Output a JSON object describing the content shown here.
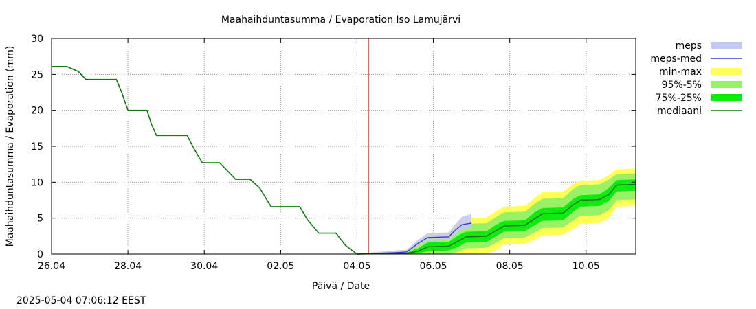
{
  "chart_data": {
    "type": "line",
    "title": "Maahaihduntasumma / Evaporation   Iso Lamujärvi",
    "xlabel": "Päivä / Date",
    "ylabel": "Maahaihduntasumma / Evaporation (mm)",
    "ylim": [
      0,
      30
    ],
    "yticks": [
      "0",
      "5",
      "10",
      "15",
      "20",
      "25",
      "30"
    ],
    "xlim_days": [
      0,
      15.3
    ],
    "xticks": [
      {
        "day": 0,
        "label": "26.04"
      },
      {
        "day": 2,
        "label": "28.04"
      },
      {
        "day": 4,
        "label": "30.04"
      },
      {
        "day": 6,
        "label": "02.05"
      },
      {
        "day": 8,
        "label": "04.05"
      },
      {
        "day": 10,
        "label": "06.05"
      },
      {
        "day": 12,
        "label": "08.05"
      },
      {
        "day": 14,
        "label": "10.05"
      }
    ],
    "grid": true,
    "now_day": 8.3,
    "legend_position": "right",
    "legend": [
      {
        "key": "meps",
        "label": "meps",
        "color": "#c4c8f4",
        "style": "band"
      },
      {
        "key": "meps-med",
        "label": "meps-med",
        "color": "#3a3acc",
        "style": "line"
      },
      {
        "key": "min-max",
        "label": "min-max",
        "color": "#ffff55",
        "style": "band"
      },
      {
        "key": "p95-5",
        "label": "95%-5%",
        "color": "#99f266",
        "style": "band"
      },
      {
        "key": "p75-25",
        "label": "75%-25%",
        "color": "#11ea11",
        "style": "band"
      },
      {
        "key": "mediaani",
        "label": "mediaani",
        "color": "#117711",
        "style": "line"
      }
    ],
    "series": {
      "observed": {
        "name": "mediaani (history)",
        "x": [
          0,
          0.4,
          0.7,
          0.9,
          1.7,
          1.85,
          2.0,
          2.5,
          2.62,
          2.75,
          3.0,
          3.55,
          3.75,
          3.95,
          4.4,
          4.62,
          4.82,
          5.2,
          5.45,
          5.75,
          5.95,
          6.5,
          6.7,
          7.0,
          7.45,
          7.7,
          8.0
        ],
        "y": [
          26.1,
          26.1,
          25.4,
          24.3,
          24.3,
          22.3,
          20.0,
          20.0,
          18.0,
          16.5,
          16.5,
          16.5,
          14.5,
          12.7,
          12.7,
          11.5,
          10.4,
          10.4,
          9.2,
          6.6,
          6.6,
          6.6,
          4.8,
          2.9,
          2.9,
          1.2,
          0.0
        ]
      },
      "forecast_x": [
        8.0,
        9.3,
        9.6,
        9.85,
        10.4,
        10.65,
        10.85,
        11.4,
        11.65,
        11.85,
        12.4,
        12.65,
        12.85,
        13.4,
        13.65,
        13.85,
        14.35,
        14.6,
        14.8,
        15.3
      ],
      "median": [
        0.0,
        0.1,
        0.4,
        1.0,
        1.1,
        1.8,
        2.4,
        2.5,
        3.3,
        3.9,
        4.0,
        4.9,
        5.6,
        5.7,
        6.8,
        7.5,
        7.6,
        8.3,
        9.6,
        9.7
      ],
      "p75": [
        0.0,
        0.2,
        0.8,
        1.6,
        1.7,
        2.6,
        3.1,
        3.2,
        4.1,
        4.6,
        4.7,
        5.8,
        6.4,
        6.5,
        7.6,
        8.2,
        8.3,
        9.2,
        10.3,
        10.4
      ],
      "p25": [
        0.0,
        0.0,
        0.1,
        0.4,
        0.5,
        1.0,
        1.6,
        1.7,
        2.5,
        3.1,
        3.2,
        4.0,
        4.6,
        4.7,
        5.8,
        6.6,
        6.7,
        7.4,
        8.7,
        8.8
      ],
      "p95": [
        0.0,
        0.4,
        1.3,
        2.3,
        2.4,
        3.5,
        4.2,
        4.3,
        5.2,
        5.8,
        5.9,
        7.0,
        7.7,
        7.8,
        9.0,
        9.6,
        9.7,
        10.4,
        11.1,
        11.2
      ],
      "p5": [
        0.0,
        0.0,
        0.0,
        0.0,
        0.0,
        0.3,
        0.8,
        0.9,
        1.6,
        2.2,
        2.3,
        3.0,
        3.6,
        3.7,
        4.6,
        5.3,
        5.4,
        6.1,
        7.5,
        7.6
      ],
      "max": [
        0.0,
        0.6,
        1.7,
        2.8,
        3.0,
        4.4,
        5.0,
        5.1,
        6.0,
        6.6,
        6.7,
        7.8,
        8.6,
        8.7,
        9.7,
        10.2,
        10.3,
        11.0,
        11.8,
        11.9
      ],
      "min": [
        0.0,
        0.0,
        0.0,
        0.0,
        0.0,
        0.0,
        0.0,
        0.1,
        0.6,
        1.3,
        1.4,
        2.0,
        2.6,
        2.7,
        3.5,
        4.2,
        4.3,
        5.0,
        6.6,
        6.7
      ],
      "meps": {
        "x": [
          8.0,
          8.5,
          9.0,
          9.3,
          9.6,
          9.85,
          10.4,
          10.55,
          10.75,
          11.0
        ],
        "lo": [
          0.0,
          0.0,
          0.0,
          0.2,
          1.2,
          1.8,
          1.9,
          2.6,
          3.4,
          3.6
        ],
        "hi": [
          0.0,
          0.3,
          0.5,
          0.6,
          2.0,
          2.9,
          3.0,
          4.0,
          5.2,
          5.6
        ],
        "med": [
          0.0,
          0.1,
          0.2,
          0.3,
          1.5,
          2.3,
          2.4,
          3.2,
          4.1,
          4.3
        ]
      }
    }
  },
  "footer": {
    "timestamp": "2025-05-04 07:06:12 EEST"
  }
}
